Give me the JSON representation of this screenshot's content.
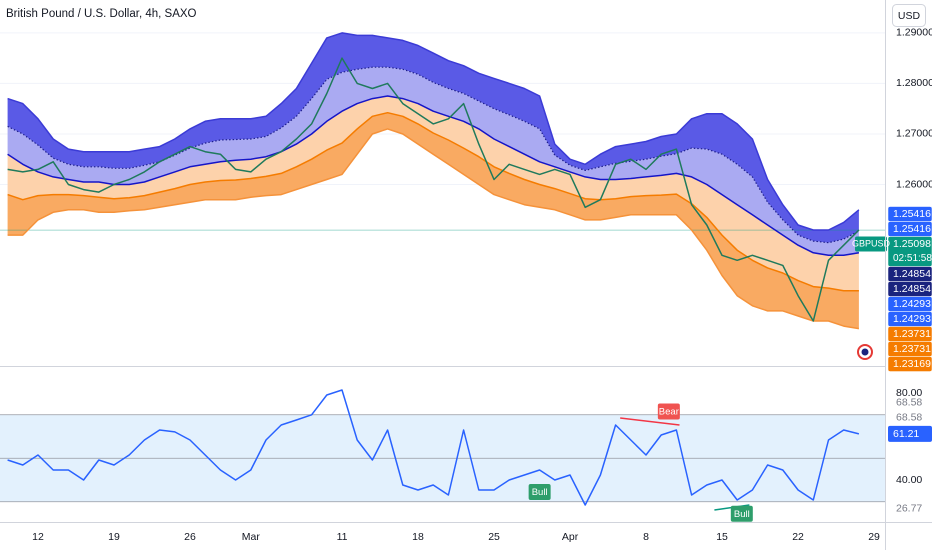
{
  "chart_data": [
    {
      "type": "line",
      "title": "British Pound / U.S. Dollar, 4h, SAXO",
      "currency": "USD",
      "x": [
        -2,
        -1,
        0,
        1,
        2,
        3,
        4,
        5,
        6,
        7,
        8,
        9,
        10,
        11,
        12,
        13,
        14,
        15,
        16,
        17,
        18,
        19,
        20,
        21,
        22,
        23,
        24,
        25,
        26,
        27,
        28,
        29,
        30,
        31,
        32,
        33,
        34,
        35,
        36,
        37,
        38,
        39,
        40,
        41,
        42,
        43,
        44,
        45,
        46,
        47,
        48,
        49,
        50,
        51,
        52,
        53,
        54
      ],
      "xlim": [
        -2.5,
        55.72
      ],
      "ylim": [
        1.2241,
        1.2965
      ],
      "yticks": [
        {
          "value": 1.26,
          "label": "1.26000"
        },
        {
          "value": 1.27,
          "label": "1.27000"
        },
        {
          "value": 1.28,
          "label": "1.28000"
        },
        {
          "value": 1.29,
          "label": "1.29000"
        }
      ],
      "series": [
        {
          "color": "#3b3bd6",
          "values": [
            1.277,
            1.276,
            1.273,
            1.269,
            1.267,
            1.2665,
            1.2665,
            1.2665,
            1.2665,
            1.267,
            1.2675,
            1.269,
            1.271,
            1.2725,
            1.273,
            1.273,
            1.273,
            1.2735,
            1.276,
            1.279,
            1.284,
            1.289,
            1.29,
            1.2895,
            1.2895,
            1.289,
            1.2885,
            1.2875,
            1.286,
            1.2845,
            1.2835,
            1.282,
            1.281,
            1.28,
            1.279,
            1.2775,
            1.268,
            1.265,
            1.264,
            1.266,
            1.2675,
            1.268,
            1.2685,
            1.2695,
            1.27,
            1.273,
            1.274,
            1.274,
            1.272,
            1.269,
            1.261,
            1.256,
            1.252,
            1.251,
            1.251,
            1.2525,
            1.255
          ]
        },
        {
          "color": "#1e1e8c",
          "dash": true,
          "values": [
            1.2715,
            1.27,
            1.2678,
            1.2652,
            1.264,
            1.2635,
            1.2635,
            1.2632,
            1.2632,
            1.2638,
            1.2645,
            1.2658,
            1.2672,
            1.2682,
            1.2688,
            1.2689,
            1.269,
            1.2695,
            1.2712,
            1.2735,
            1.277,
            1.2808,
            1.2822,
            1.2828,
            1.2832,
            1.2832,
            1.2828,
            1.2818,
            1.2802,
            1.279,
            1.278,
            1.2765,
            1.275,
            1.2738,
            1.2725,
            1.271,
            1.2658,
            1.2638,
            1.2628,
            1.2635,
            1.2642,
            1.2646,
            1.265,
            1.2656,
            1.2661,
            1.2672,
            1.267,
            1.266,
            1.264,
            1.2615,
            1.2565,
            1.253,
            1.25,
            1.2488,
            1.2485,
            1.2492,
            1.2508
          ]
        },
        {
          "color": "#1515c8",
          "values": [
            1.266,
            1.264,
            1.2625,
            1.2615,
            1.261,
            1.2605,
            1.2605,
            1.26,
            1.26,
            1.2605,
            1.2615,
            1.2625,
            1.2635,
            1.264,
            1.2645,
            1.2648,
            1.265,
            1.2655,
            1.2665,
            1.268,
            1.27,
            1.2725,
            1.2745,
            1.276,
            1.277,
            1.2775,
            1.277,
            1.276,
            1.2745,
            1.2735,
            1.2725,
            1.271,
            1.269,
            1.2675,
            1.266,
            1.2645,
            1.2635,
            1.2625,
            1.2615,
            1.261,
            1.261,
            1.2612,
            1.2615,
            1.2618,
            1.2622,
            1.2615,
            1.26,
            1.258,
            1.256,
            1.254,
            1.252,
            1.25,
            1.248,
            1.2465,
            1.246,
            1.246,
            1.2465
          ]
        },
        {
          "color": "#f57c00",
          "values": [
            1.258,
            1.257,
            1.2578,
            1.258,
            1.258,
            1.2578,
            1.2575,
            1.2572,
            1.2574,
            1.2578,
            1.2585,
            1.2592,
            1.26,
            1.2605,
            1.2608,
            1.2609,
            1.2612,
            1.2616,
            1.2622,
            1.2635,
            1.265,
            1.2668,
            1.2682,
            1.271,
            1.2735,
            1.2742,
            1.2735,
            1.272,
            1.2702,
            1.2688,
            1.2672,
            1.2655,
            1.2635,
            1.2622,
            1.261,
            1.26,
            1.2592,
            1.2582,
            1.2572,
            1.257,
            1.2572,
            1.2576,
            1.2578,
            1.2579,
            1.2581,
            1.2562,
            1.2535,
            1.25,
            1.247,
            1.245,
            1.2435,
            1.2425,
            1.241,
            1.2398,
            1.2395,
            1.239,
            1.239
          ]
        },
        {
          "color": "#f5923a",
          "values": [
            1.25,
            1.25,
            1.253,
            1.2545,
            1.255,
            1.255,
            1.2545,
            1.2545,
            1.2548,
            1.255,
            1.2555,
            1.256,
            1.2565,
            1.257,
            1.257,
            1.257,
            1.2575,
            1.2578,
            1.258,
            1.259,
            1.26,
            1.261,
            1.262,
            1.266,
            1.27,
            1.271,
            1.27,
            1.268,
            1.266,
            1.264,
            1.262,
            1.26,
            1.258,
            1.257,
            1.256,
            1.2555,
            1.255,
            1.254,
            1.253,
            1.253,
            1.2535,
            1.254,
            1.254,
            1.254,
            1.254,
            1.251,
            1.247,
            1.242,
            1.238,
            1.236,
            1.235,
            1.235,
            1.234,
            1.233,
            1.233,
            1.232,
            1.2315
          ]
        },
        {
          "color": "#1f7a5c",
          "values": [
            1.263,
            1.2625,
            1.263,
            1.2645,
            1.26,
            1.259,
            1.2585,
            1.26,
            1.261,
            1.2625,
            1.2645,
            1.266,
            1.2675,
            1.2665,
            1.266,
            1.263,
            1.2625,
            1.265,
            1.2665,
            1.269,
            1.272,
            1.278,
            1.285,
            1.28,
            1.279,
            1.28,
            1.276,
            1.274,
            1.272,
            1.273,
            1.276,
            1.268,
            1.261,
            1.264,
            1.263,
            1.262,
            1.263,
            1.262,
            1.2555,
            1.257,
            1.264,
            1.265,
            1.263,
            1.266,
            1.267,
            1.256,
            1.252,
            1.246,
            1.245,
            1.246,
            1.245,
            1.244,
            1.238,
            1.233,
            1.245,
            1.248,
            1.251
          ]
        }
      ],
      "fills": [
        "#5a5ae6",
        "#aaaaf2",
        "#fdd2ab",
        "#f9aa62"
      ],
      "badges": [
        {
          "value": 1.25416,
          "color": "#2962ff"
        },
        {
          "value": 1.25416,
          "color": "#2962ff"
        },
        {
          "value": 1.25098,
          "color": "#089981",
          "tag": "GBPUSD",
          "countdown": "02:51:58"
        },
        {
          "value": 1.24854,
          "color": "#1a237e"
        },
        {
          "value": 1.24854,
          "color": "#1a237e"
        },
        {
          "value": 1.24293,
          "color": "#2962ff"
        },
        {
          "value": 1.24293,
          "color": "#2962ff"
        },
        {
          "value": 1.23731,
          "color": "#f57c00"
        },
        {
          "value": 1.23731,
          "color": "#f57c00"
        },
        {
          "value": 1.23169,
          "color": "#f57c00"
        }
      ]
    },
    {
      "type": "line",
      "x": [
        -2,
        -1,
        0,
        1,
        2,
        3,
        4,
        5,
        6,
        7,
        8,
        9,
        10,
        11,
        12,
        13,
        14,
        15,
        16,
        17,
        18,
        19,
        20,
        21,
        22,
        23,
        24,
        25,
        26,
        27,
        28,
        29,
        30,
        31,
        32,
        33,
        34,
        35,
        36,
        37,
        38,
        39,
        40,
        41,
        42,
        43,
        44,
        45,
        46,
        47,
        48,
        49,
        50,
        51,
        52,
        53,
        54
      ],
      "xlim": [
        -2.5,
        55.72
      ],
      "xticks": [
        {
          "value": 0,
          "label": "12"
        },
        {
          "value": 5,
          "label": "19"
        },
        {
          "value": 10,
          "label": "26"
        },
        {
          "value": 14,
          "label": "Mar"
        },
        {
          "value": 20,
          "label": "11"
        },
        {
          "value": 25,
          "label": "18"
        },
        {
          "value": 30,
          "label": "25"
        },
        {
          "value": 35,
          "label": "Apr"
        },
        {
          "value": 40,
          "label": "8"
        },
        {
          "value": 45,
          "label": "15"
        },
        {
          "value": 50,
          "label": "22"
        },
        {
          "value": 55,
          "label": "29"
        }
      ],
      "ylim": [
        20.7,
        91.5
      ],
      "yticks": [
        {
          "value": 80,
          "label": "80.00"
        },
        {
          "value": 40,
          "label": "40.00"
        }
      ],
      "hlines": [
        70,
        50,
        30
      ],
      "band_color": "#e3f1fd",
      "series": [
        {
          "color": "#2962ff",
          "values": [
            49.2,
            46.9,
            51.5,
            44.6,
            44.6,
            40,
            49.2,
            46.9,
            51.5,
            58.4,
            63,
            62.1,
            58.4,
            51.5,
            44.6,
            40,
            44.6,
            58.4,
            65.3,
            67.6,
            70,
            79.1,
            81.4,
            58.4,
            49.2,
            63,
            37.7,
            35.4,
            37.7,
            33.1,
            63,
            35.4,
            35.4,
            40,
            42.3,
            44.6,
            40,
            42.3,
            28.5,
            42.3,
            65.3,
            58.4,
            51.5,
            60.7,
            63,
            33.1,
            37.7,
            40,
            30.8,
            35.4,
            46.9,
            44.6,
            35.4,
            30.8,
            58.4,
            63,
            61.21
          ]
        }
      ],
      "levels": [
        68.58,
        68.58,
        26.77
      ],
      "badge": {
        "value": 61.21,
        "color": "#2962ff"
      },
      "divergences": [
        {
          "color": "#f23645",
          "x": [
            38.3,
            42.2
          ],
          "y": [
            68.5,
            65.3
          ]
        },
        {
          "color": "#089981",
          "x": [
            44.5,
            46.8
          ],
          "y": [
            26.2,
            28.5
          ]
        }
      ],
      "annotations": [
        {
          "text": "Bull",
          "color": "#2e9e6b",
          "x": 33,
          "y": 34.5
        },
        {
          "text": "Bear",
          "color": "#f05350",
          "x": 41.5,
          "y": 71.5
        },
        {
          "text": "Bull",
          "color": "#2e9e6b",
          "x": 46.3,
          "y": 24.5
        }
      ]
    }
  ]
}
